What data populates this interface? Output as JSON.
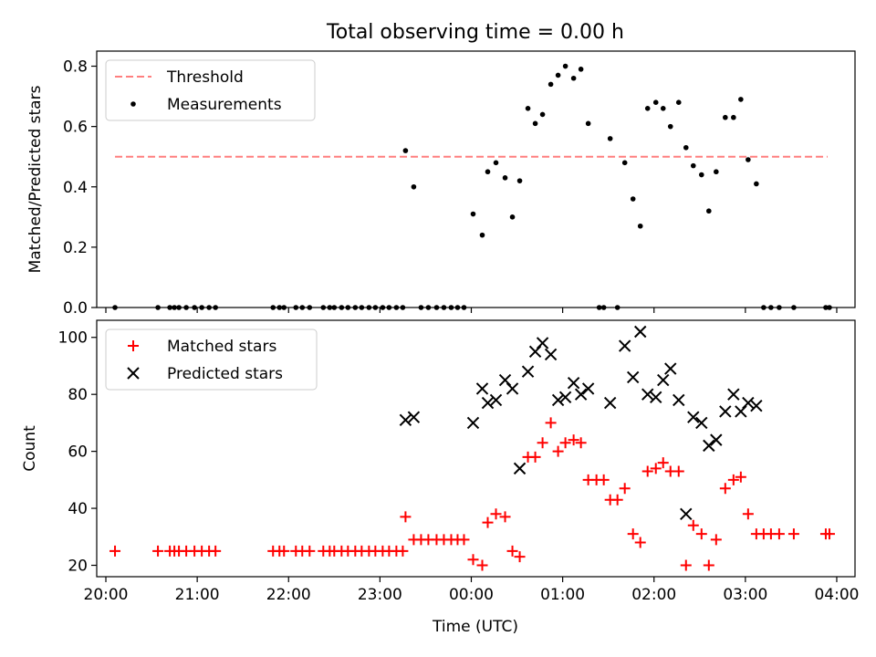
{
  "title": "Total observing time = 0.00 h",
  "xlabel": "Time (UTC)",
  "colors": {
    "threshold": "#ff7f7f",
    "measurements": "#000000",
    "matched": "#ff0000",
    "predicted": "#000000"
  },
  "chart_data": [
    {
      "type": "scatter",
      "title": "Total observing time = 0.00 h",
      "ylabel": "Matched/Predicted stars",
      "ylim": [
        0,
        0.85
      ],
      "yticks": [
        0.0,
        0.2,
        0.4,
        0.6,
        0.8
      ],
      "xlim_hours": [
        19.9,
        28.2
      ],
      "xticks_hours": [
        20,
        21,
        22,
        23,
        24,
        25,
        26,
        27,
        28
      ],
      "legend": {
        "placement": "top-left",
        "entries": [
          {
            "label": "Threshold",
            "style": "dashed-line",
            "color": "#ff7f7f"
          },
          {
            "label": "Measurements",
            "style": "dot",
            "color": "#000000"
          }
        ]
      },
      "threshold": {
        "name": "Threshold",
        "value": 0.5,
        "x_range": [
          20.1,
          27.9
        ]
      },
      "series": [
        {
          "name": "Measurements",
          "points": [
            [
              20.1,
              0
            ],
            [
              20.57,
              0
            ],
            [
              20.7,
              0
            ],
            [
              20.75,
              0
            ],
            [
              20.8,
              0
            ],
            [
              20.88,
              0
            ],
            [
              20.97,
              0
            ],
            [
              21.05,
              0
            ],
            [
              21.13,
              0
            ],
            [
              21.2,
              0
            ],
            [
              21.83,
              0
            ],
            [
              21.9,
              0
            ],
            [
              21.95,
              0
            ],
            [
              22.08,
              0
            ],
            [
              22.15,
              0
            ],
            [
              22.23,
              0
            ],
            [
              22.38,
              0
            ],
            [
              22.45,
              0
            ],
            [
              22.5,
              0
            ],
            [
              22.58,
              0
            ],
            [
              22.65,
              0
            ],
            [
              22.73,
              0
            ],
            [
              22.8,
              0
            ],
            [
              22.88,
              0
            ],
            [
              22.95,
              0
            ],
            [
              23.03,
              0
            ],
            [
              23.1,
              0
            ],
            [
              23.18,
              0
            ],
            [
              23.25,
              0
            ],
            [
              23.28,
              0.52
            ],
            [
              23.37,
              0.4
            ],
            [
              23.45,
              0
            ],
            [
              23.53,
              0
            ],
            [
              23.62,
              0
            ],
            [
              23.7,
              0
            ],
            [
              23.78,
              0
            ],
            [
              23.85,
              0
            ],
            [
              23.92,
              0
            ],
            [
              24.02,
              0.31
            ],
            [
              24.12,
              0.24
            ],
            [
              24.18,
              0.45
            ],
            [
              24.27,
              0.48
            ],
            [
              24.37,
              0.43
            ],
            [
              24.45,
              0.3
            ],
            [
              24.53,
              0.42
            ],
            [
              24.62,
              0.66
            ],
            [
              24.7,
              0.61
            ],
            [
              24.78,
              0.64
            ],
            [
              24.87,
              0.74
            ],
            [
              24.95,
              0.77
            ],
            [
              25.03,
              0.8
            ],
            [
              25.12,
              0.76
            ],
            [
              25.2,
              0.79
            ],
            [
              25.28,
              0.61
            ],
            [
              25.4,
              0
            ],
            [
              25.45,
              0
            ],
            [
              25.52,
              0.56
            ],
            [
              25.6,
              0
            ],
            [
              25.68,
              0.48
            ],
            [
              25.77,
              0.36
            ],
            [
              25.85,
              0.27
            ],
            [
              25.93,
              0.66
            ],
            [
              26.02,
              0.68
            ],
            [
              26.1,
              0.66
            ],
            [
              26.18,
              0.6
            ],
            [
              26.27,
              0.68
            ],
            [
              26.35,
              0.53
            ],
            [
              26.43,
              0.47
            ],
            [
              26.52,
              0.44
            ],
            [
              26.6,
              0.32
            ],
            [
              26.68,
              0.45
            ],
            [
              26.78,
              0.63
            ],
            [
              26.87,
              0.63
            ],
            [
              26.95,
              0.69
            ],
            [
              27.03,
              0.49
            ],
            [
              27.12,
              0.41
            ],
            [
              27.2,
              0
            ],
            [
              27.28,
              0
            ],
            [
              27.37,
              0
            ],
            [
              27.53,
              0
            ],
            [
              27.88,
              0
            ],
            [
              27.92,
              0
            ]
          ]
        }
      ]
    },
    {
      "type": "scatter",
      "ylabel": "Count",
      "xlabel": "Time (UTC)",
      "ylim": [
        16,
        106
      ],
      "yticks": [
        20,
        40,
        60,
        80,
        100
      ],
      "xlim_hours": [
        19.9,
        28.2
      ],
      "xticks_hours": [
        20,
        21,
        22,
        23,
        24,
        25,
        26,
        27,
        28
      ],
      "xticklabels": [
        "20:00",
        "21:00",
        "22:00",
        "23:00",
        "00:00",
        "01:00",
        "02:00",
        "03:00",
        "04:00"
      ],
      "legend": {
        "placement": "top-left",
        "entries": [
          {
            "label": "Matched stars",
            "style": "plus",
            "color": "#ff0000"
          },
          {
            "label": "Predicted stars",
            "style": "x",
            "color": "#000000"
          }
        ]
      },
      "series": [
        {
          "name": "Matched stars",
          "points": [
            [
              20.1,
              25
            ],
            [
              20.57,
              25
            ],
            [
              20.7,
              25
            ],
            [
              20.75,
              25
            ],
            [
              20.8,
              25
            ],
            [
              20.88,
              25
            ],
            [
              20.97,
              25
            ],
            [
              21.05,
              25
            ],
            [
              21.13,
              25
            ],
            [
              21.2,
              25
            ],
            [
              21.83,
              25
            ],
            [
              21.9,
              25
            ],
            [
              21.95,
              25
            ],
            [
              22.08,
              25
            ],
            [
              22.15,
              25
            ],
            [
              22.23,
              25
            ],
            [
              22.38,
              25
            ],
            [
              22.45,
              25
            ],
            [
              22.5,
              25
            ],
            [
              22.58,
              25
            ],
            [
              22.65,
              25
            ],
            [
              22.73,
              25
            ],
            [
              22.8,
              25
            ],
            [
              22.88,
              25
            ],
            [
              22.95,
              25
            ],
            [
              23.03,
              25
            ],
            [
              23.1,
              25
            ],
            [
              23.18,
              25
            ],
            [
              23.25,
              25
            ],
            [
              23.28,
              37
            ],
            [
              23.37,
              29
            ],
            [
              23.45,
              29
            ],
            [
              23.53,
              29
            ],
            [
              23.62,
              29
            ],
            [
              23.7,
              29
            ],
            [
              23.78,
              29
            ],
            [
              23.85,
              29
            ],
            [
              23.92,
              29
            ],
            [
              24.02,
              22
            ],
            [
              24.12,
              20
            ],
            [
              24.18,
              35
            ],
            [
              24.27,
              38
            ],
            [
              24.37,
              37
            ],
            [
              24.45,
              25
            ],
            [
              24.53,
              23
            ],
            [
              24.62,
              58
            ],
            [
              24.7,
              58
            ],
            [
              24.78,
              63
            ],
            [
              24.87,
              70
            ],
            [
              24.95,
              60
            ],
            [
              25.03,
              63
            ],
            [
              25.12,
              64
            ],
            [
              25.2,
              63
            ],
            [
              25.28,
              50
            ],
            [
              25.37,
              50
            ],
            [
              25.45,
              50
            ],
            [
              25.52,
              43
            ],
            [
              25.6,
              43
            ],
            [
              25.68,
              47
            ],
            [
              25.77,
              31
            ],
            [
              25.85,
              28
            ],
            [
              25.93,
              53
            ],
            [
              26.02,
              54
            ],
            [
              26.1,
              56
            ],
            [
              26.18,
              53
            ],
            [
              26.27,
              53
            ],
            [
              26.35,
              20
            ],
            [
              26.43,
              34
            ],
            [
              26.52,
              31
            ],
            [
              26.6,
              20
            ],
            [
              26.68,
              29
            ],
            [
              26.78,
              47
            ],
            [
              26.87,
              50
            ],
            [
              26.95,
              51
            ],
            [
              27.03,
              38
            ],
            [
              27.12,
              31
            ],
            [
              27.2,
              31
            ],
            [
              27.28,
              31
            ],
            [
              27.37,
              31
            ],
            [
              27.53,
              31
            ],
            [
              27.88,
              31
            ],
            [
              27.92,
              31
            ]
          ]
        },
        {
          "name": "Predicted stars",
          "points": [
            [
              23.28,
              71
            ],
            [
              23.37,
              72
            ],
            [
              24.02,
              70
            ],
            [
              24.12,
              82
            ],
            [
              24.18,
              77
            ],
            [
              24.27,
              78
            ],
            [
              24.37,
              85
            ],
            [
              24.45,
              82
            ],
            [
              24.53,
              54
            ],
            [
              24.62,
              88
            ],
            [
              24.7,
              95
            ],
            [
              24.78,
              98
            ],
            [
              24.87,
              94
            ],
            [
              24.95,
              78
            ],
            [
              25.03,
              79
            ],
            [
              25.12,
              84
            ],
            [
              25.2,
              80
            ],
            [
              25.28,
              82
            ],
            [
              25.52,
              77
            ],
            [
              25.68,
              97
            ],
            [
              25.77,
              86
            ],
            [
              25.85,
              102
            ],
            [
              25.93,
              80
            ],
            [
              26.02,
              79
            ],
            [
              26.1,
              85
            ],
            [
              26.18,
              89
            ],
            [
              26.27,
              78
            ],
            [
              26.35,
              38
            ],
            [
              26.43,
              72
            ],
            [
              26.52,
              70
            ],
            [
              26.6,
              62
            ],
            [
              26.68,
              64
            ],
            [
              26.78,
              74
            ],
            [
              26.87,
              80
            ],
            [
              26.95,
              74
            ],
            [
              27.03,
              77
            ],
            [
              27.12,
              76
            ]
          ]
        }
      ]
    }
  ]
}
